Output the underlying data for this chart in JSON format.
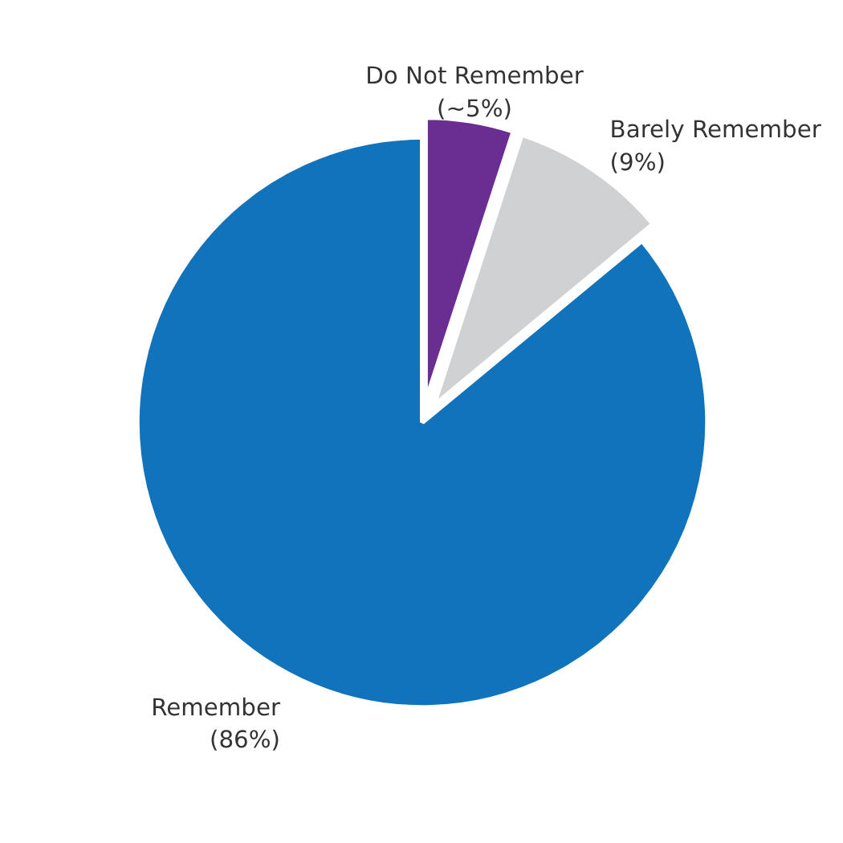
{
  "chart_data": {
    "type": "pie",
    "categories": [
      "Do Not Remember",
      "Barely Remember",
      "Remember"
    ],
    "values": [
      5,
      9,
      86
    ],
    "value_labels": [
      "(~5%)",
      "(9%)",
      "(86%)"
    ],
    "colors": [
      "#6a2d91",
      "#d0d1d3",
      "#1073bb"
    ]
  }
}
